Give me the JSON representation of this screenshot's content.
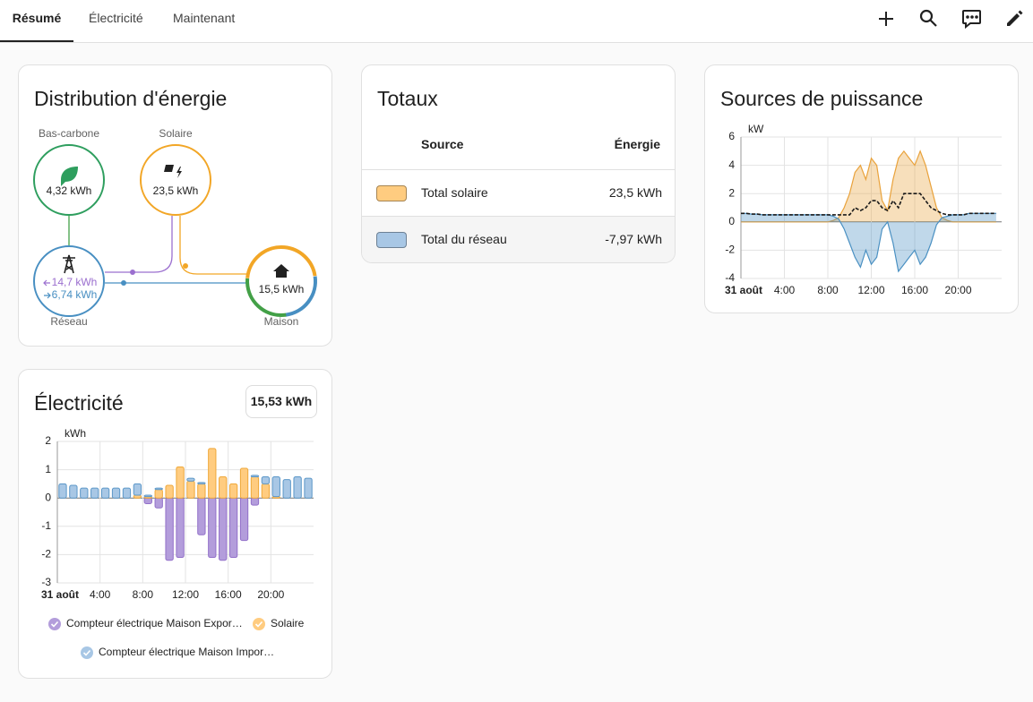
{
  "tabs": [
    "Résumé",
    "Électricité",
    "Maintenant"
  ],
  "distribution": {
    "title": "Distribution d'énergie",
    "low_carbon": {
      "label": "Bas-carbone",
      "value": "4,32 kWh"
    },
    "solar": {
      "label": "Solaire",
      "value": "23,5 kWh"
    },
    "grid": {
      "label": "Réseau",
      "import": "14,7 kWh",
      "export": "6,74 kWh"
    },
    "home": {
      "label": "Maison",
      "value": "15,5 kWh"
    }
  },
  "totals": {
    "title": "Totaux",
    "columns": [
      "Source",
      "Énergie"
    ],
    "rows": [
      {
        "source": "Total solaire",
        "energy": "23,5 kWh",
        "color": "#ffcc80"
      },
      {
        "source": "Total du réseau",
        "energy": "-7,97 kWh",
        "color": "#a8c7e5"
      }
    ]
  },
  "power_chart": {
    "type": "area",
    "title": "Sources de puissance",
    "y_label": "kW",
    "x": [
      0,
      0.5,
      1,
      1.5,
      2,
      2.5,
      3,
      3.5,
      4,
      4.5,
      5,
      5.5,
      6,
      6.5,
      7,
      7.5,
      8,
      8.5,
      9,
      9.5,
      10,
      10.5,
      11,
      11.5,
      12,
      12.5,
      13,
      13.5,
      14,
      14.5,
      15,
      15.5,
      16,
      16.5,
      17,
      17.5,
      18,
      18.5,
      19,
      19.5,
      20,
      20.5,
      21,
      21.5,
      22,
      22.5,
      23,
      23.5
    ],
    "xlim": [
      0,
      24
    ],
    "xticks": [
      {
        "value": 0,
        "label": "31 août"
      },
      {
        "value": 4,
        "label": "4:00"
      },
      {
        "value": 8,
        "label": "8:00"
      },
      {
        "value": 12,
        "label": "12:00"
      },
      {
        "value": 16,
        "label": "16:00"
      },
      {
        "value": 20,
        "label": "20:00"
      }
    ],
    "ylim": [
      -4,
      6
    ],
    "yticks": [
      -4,
      -2,
      0,
      2,
      4,
      6
    ],
    "grid": true,
    "series": [
      {
        "color": "#e9a23b",
        "fill": true,
        "dashed": false,
        "values": [
          0,
          0,
          0,
          0,
          0,
          0,
          0,
          0,
          0,
          0,
          0,
          0,
          0,
          0,
          0,
          0,
          0,
          0.1,
          0.3,
          1.0,
          2.0,
          3.5,
          4.0,
          3.0,
          4.5,
          4.0,
          1.5,
          0.8,
          3.0,
          4.5,
          5.0,
          4.5,
          4.0,
          5.0,
          4.0,
          2.5,
          1.0,
          0.3,
          0.1,
          0,
          0,
          0,
          0,
          0,
          0,
          0,
          0,
          0
        ]
      },
      {
        "color": "#4a90c2",
        "fill": true,
        "dashed": false,
        "values": [
          0.6,
          0.6,
          0.55,
          0.55,
          0.5,
          0.5,
          0.5,
          0.5,
          0.5,
          0.5,
          0.5,
          0.5,
          0.5,
          0.5,
          0.5,
          0.5,
          0.5,
          0.4,
          0.2,
          -0.5,
          -1.5,
          -2.5,
          -3.2,
          -2.0,
          -3.0,
          -2.5,
          -0.5,
          0.0,
          -1.5,
          -3.5,
          -3.0,
          -2.5,
          -2.0,
          -3.0,
          -2.5,
          -1.5,
          -0.2,
          0.3,
          0.4,
          0.5,
          0.5,
          0.5,
          0.6,
          0.6,
          0.6,
          0.6,
          0.6,
          0.6
        ]
      },
      {
        "color": "#1a1a1a",
        "fill": false,
        "dashed": true,
        "values": [
          0.6,
          0.6,
          0.55,
          0.55,
          0.5,
          0.5,
          0.5,
          0.5,
          0.5,
          0.5,
          0.5,
          0.5,
          0.5,
          0.5,
          0.5,
          0.5,
          0.5,
          0.5,
          0.5,
          0.5,
          0.5,
          1.0,
          0.8,
          1.0,
          1.5,
          1.5,
          1.0,
          0.8,
          1.5,
          1.0,
          2.0,
          2.0,
          2.0,
          2.0,
          1.5,
          1.0,
          0.8,
          0.6,
          0.5,
          0.5,
          0.5,
          0.5,
          0.6,
          0.6,
          0.6,
          0.6,
          0.6,
          0.6
        ]
      }
    ]
  },
  "energy_chart": {
    "type": "bar",
    "title": "Électricité",
    "total": "15,53 kWh",
    "y_label": "kWh",
    "x": [
      0,
      1,
      2,
      3,
      4,
      5,
      6,
      7,
      8,
      9,
      10,
      11,
      12,
      13,
      14,
      15,
      16,
      17,
      18,
      19,
      20,
      21,
      22,
      23
    ],
    "xlim": [
      0,
      24
    ],
    "xticks": [
      {
        "value": 0,
        "label": "31 août"
      },
      {
        "value": 4,
        "label": "4:00"
      },
      {
        "value": 8,
        "label": "8:00"
      },
      {
        "value": 12,
        "label": "12:00"
      },
      {
        "value": 16,
        "label": "16:00"
      },
      {
        "value": 20,
        "label": "20:00"
      }
    ],
    "ylim": [
      -3,
      2
    ],
    "yticks": [
      -3,
      -2,
      -1,
      0,
      1,
      2
    ],
    "grid": true,
    "stacked": true,
    "series": [
      {
        "name": "Compteur électrique Maison Expor…",
        "color": "#b39ddb",
        "stroke": "#9270c9",
        "values": [
          0,
          0,
          0,
          0,
          0,
          0,
          0,
          0,
          -0.2,
          -0.35,
          -2.2,
          -2.1,
          0,
          -1.3,
          -2.1,
          -2.2,
          -2.1,
          -1.5,
          -0.25,
          0,
          0,
          0,
          0,
          0
        ]
      },
      {
        "name": "Solaire",
        "color": "#ffcc80",
        "stroke": "#efa83a",
        "values": [
          0,
          0,
          0,
          0,
          0,
          0,
          0,
          0.1,
          0.05,
          0.3,
          0.45,
          1.1,
          0.6,
          0.5,
          1.75,
          0.75,
          0.5,
          1.05,
          0.75,
          0.5,
          0.05,
          0,
          0,
          0
        ]
      },
      {
        "name": "Compteur électrique Maison Impor…",
        "color": "#a8c7e5",
        "stroke": "#5b97c8",
        "values": [
          0.5,
          0.45,
          0.35,
          0.35,
          0.35,
          0.35,
          0.35,
          0.4,
          0.05,
          0.05,
          0,
          0,
          0.1,
          0.05,
          0,
          0,
          0,
          0,
          0.05,
          0.25,
          0.7,
          0.65,
          0.75,
          0.7
        ]
      }
    ]
  }
}
